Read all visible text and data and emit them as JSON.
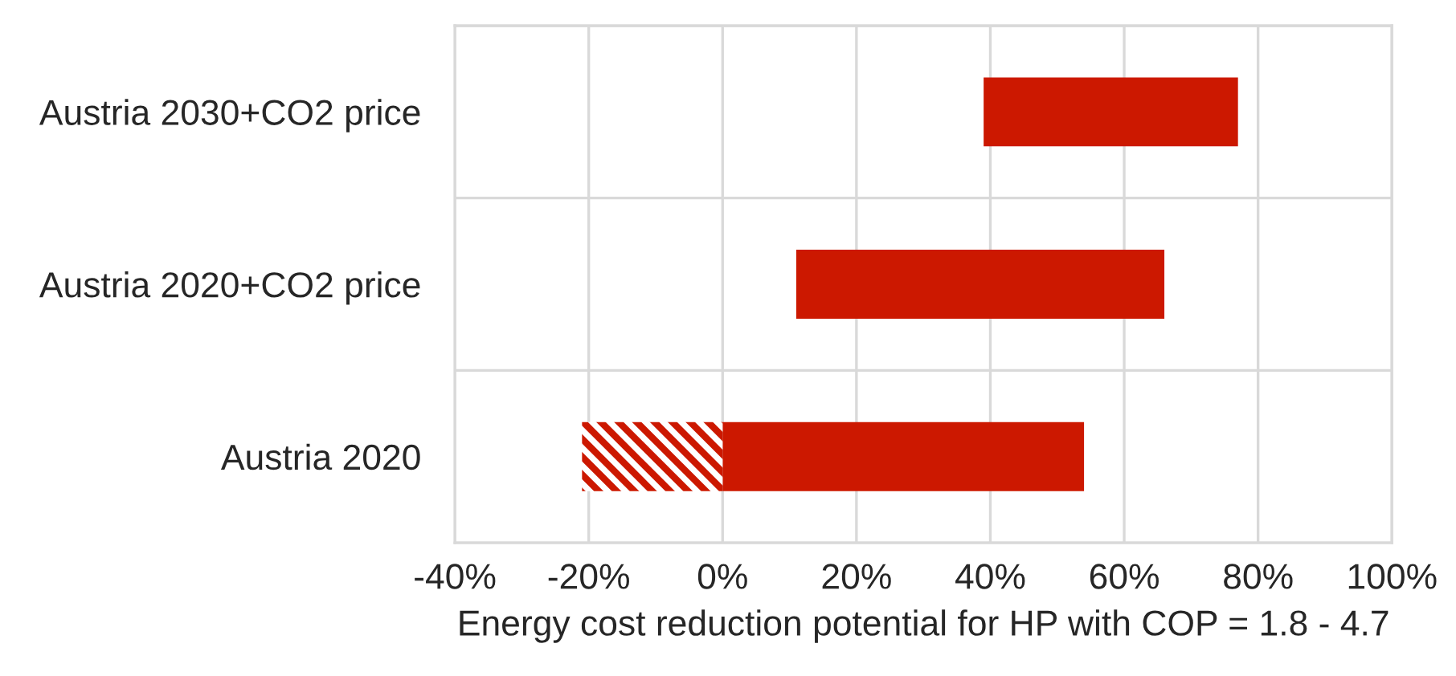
{
  "chart_data": {
    "type": "bar",
    "orientation": "horizontal",
    "categories": [
      "Austria 2030+CO2 price",
      "Austria 2020+CO2 price",
      "Austria 2020"
    ],
    "series": [
      {
        "color": "#cc1800",
        "base": [
          39,
          11,
          0
        ],
        "values": [
          38,
          55,
          54
        ]
      },
      {
        "color": "#cc1800",
        "base": [
          null,
          null,
          -21
        ],
        "values": [
          null,
          null,
          21
        ]
      }
    ],
    "xlim": [
      -40,
      100
    ],
    "xticks": [
      {
        "value": -40,
        "label": "-40%"
      },
      {
        "value": -20,
        "label": "-20%"
      },
      {
        "value": 0,
        "label": "0%"
      },
      {
        "value": 20,
        "label": "20%"
      },
      {
        "value": 40,
        "label": "40%"
      },
      {
        "value": 60,
        "label": "60%"
      },
      {
        "value": 80,
        "label": "80%"
      },
      {
        "value": 100,
        "label": "100%"
      }
    ],
    "xlabel": "Energy cost reduction potential for HP with COP = 1.8 - 4.7",
    "grid": true
  }
}
